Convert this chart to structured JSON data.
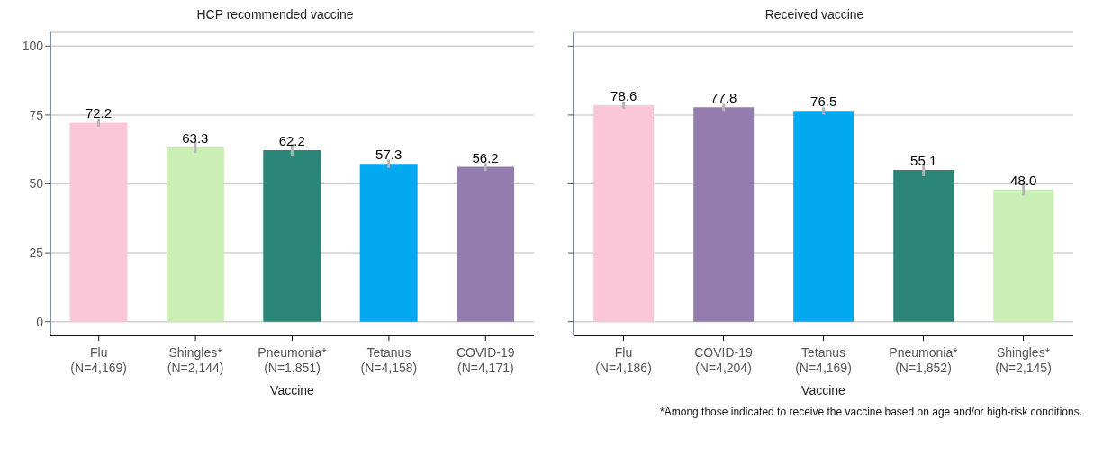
{
  "chart_data": [
    {
      "type": "bar",
      "title": "HCP recommended vaccine",
      "xlabel": "Vaccine",
      "categories": [
        "Flu\n(N=4,169)",
        "Shingles*\n(N=2,144)",
        "Pneumonia*\n(N=1,851)",
        "Tetanus\n(N=4,158)",
        "COVID-19\n(N=4,171)"
      ],
      "values": [
        72.2,
        63.3,
        62.2,
        57.3,
        56.2
      ],
      "errors": [
        1.4,
        2.0,
        2.3,
        1.5,
        1.5
      ],
      "colors": [
        "#fbc6d8",
        "#c9efb4",
        "#2c8579",
        "#03a9f0",
        "#947dae"
      ],
      "ylim": [
        -5,
        105
      ],
      "yticks": [
        0,
        25,
        50,
        75,
        100
      ],
      "grid": "y",
      "value_labels": [
        "72.2",
        "63.3",
        "62.2",
        "57.3",
        "56.2"
      ]
    },
    {
      "type": "bar",
      "title": "Received vaccine",
      "xlabel": "Vaccine",
      "categories": [
        "Flu\n(N=4,186)",
        "COVID-19\n(N=4,204)",
        "Tetanus\n(N=4,169)",
        "Pneumonia*\n(N=1,852)",
        "Shingles*\n(N=2,145)"
      ],
      "values": [
        78.6,
        77.8,
        76.5,
        55.1,
        48.0
      ],
      "errors": [
        1.3,
        1.3,
        1.3,
        2.3,
        2.2
      ],
      "colors": [
        "#fbc6d8",
        "#947dae",
        "#03a9f0",
        "#2c8579",
        "#c9efb4"
      ],
      "ylim": [
        -5,
        105
      ],
      "yticks": [
        0,
        25,
        50,
        75,
        100
      ],
      "grid": "y",
      "value_labels": [
        "78.6",
        "77.8",
        "76.5",
        "55.1",
        "48.0"
      ],
      "tick_labels": "x",
      "annotations": [
        "*Among those indicated to receive the vaccine based on age and/or high-risk conditions."
      ]
    }
  ]
}
